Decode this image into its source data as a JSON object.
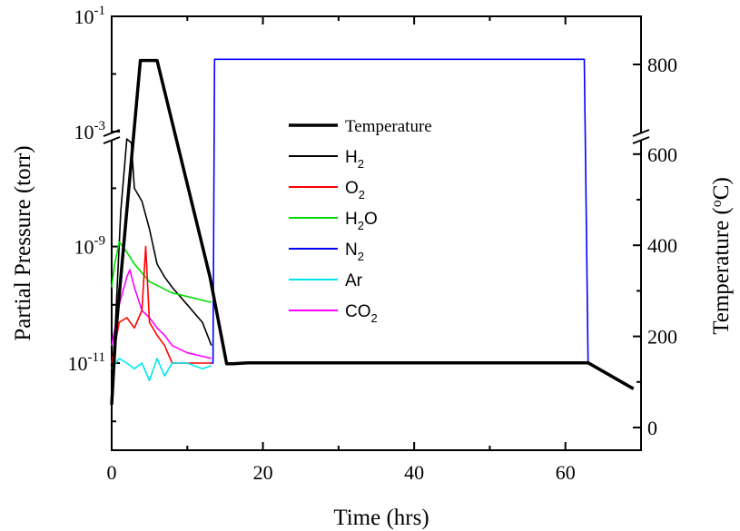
{
  "chart_data": {
    "type": "line",
    "xlabel": "Time (hrs)",
    "ylabel_left": "Partial Pressure (torr)",
    "ylabel_right": "Temperature (",
    "ylabel_right_sup": "o",
    "ylabel_right_end": "C)",
    "xlim": [
      0,
      70
    ],
    "x_ticks": [
      "0",
      "20",
      "40",
      "60"
    ],
    "left_axis": {
      "scale": "log (broken)",
      "tick_labels": [
        {
          "base": "10",
          "exp": "-1"
        },
        {
          "base": "10",
          "exp": "-3"
        },
        {
          "base": "10",
          "exp": "-9"
        },
        {
          "base": "10",
          "exp": "-11"
        }
      ]
    },
    "right_axis": {
      "scale": "linear (broken)",
      "tick_labels": [
        "800",
        "600",
        "400",
        "200",
        "0"
      ]
    },
    "legend": [
      {
        "key": "temp",
        "color": "#000000",
        "plain": "Temperature",
        "sub": "",
        "tail": ""
      },
      {
        "key": "h2",
        "color": "#000000",
        "plain": "H",
        "sub": "2",
        "tail": ""
      },
      {
        "key": "o2",
        "color": "#ff0000",
        "plain": "O",
        "sub": "2",
        "tail": ""
      },
      {
        "key": "h2o",
        "color": "#00dd00",
        "plain": "H",
        "sub": "2",
        "tail": "O"
      },
      {
        "key": "n2",
        "color": "#0000ff",
        "plain": "N",
        "sub": "2",
        "tail": ""
      },
      {
        "key": "ar",
        "color": "#00e5ee",
        "plain": "Ar",
        "sub": "",
        "tail": ""
      },
      {
        "key": "co2",
        "color": "#ff00ff",
        "plain": "CO",
        "sub": "2",
        "tail": ""
      }
    ],
    "series": [
      {
        "name": "Temperature",
        "axis": "right",
        "color": "#000000",
        "x": [
          0,
          0.5,
          3.8,
          6,
          13,
          15.2,
          16,
          18,
          63,
          69
        ],
        "y": [
          50,
          200,
          806,
          806,
          330,
          140,
          140,
          142,
          142,
          85
        ]
      },
      {
        "name": "N2",
        "axis": "left",
        "color": "#0000ff",
        "x": [
          13.0,
          13.4,
          13.6,
          62.0,
          62.5,
          63.0,
          63.3
        ],
        "y": [
          1e-11,
          1e-11,
          0.018,
          0.018,
          0.018,
          1e-11,
          1e-11
        ]
      },
      {
        "name": "H2",
        "axis": "left",
        "color": "#000000",
        "x": [
          0,
          0.5,
          1.2,
          2.0,
          2.6,
          3.0,
          4.0,
          5.0,
          6.0,
          7.0,
          8.0,
          10.0,
          12.0,
          13.2
        ],
        "y": [
          5e-12,
          5e-11,
          4e-09,
          7e-08,
          6e-08,
          1e-08,
          6e-09,
          2e-09,
          5e-10,
          3e-10,
          2e-10,
          1e-10,
          5e-11,
          2e-11
        ]
      },
      {
        "name": "H2O",
        "axis": "left",
        "color": "#00dd00",
        "x": [
          0,
          0.4,
          1.0,
          2.0,
          3.0,
          5.0,
          8.0,
          13.2
        ],
        "y": [
          2e-10,
          5e-10,
          1.2e-09,
          8e-10,
          5e-10,
          2.5e-10,
          1.6e-10,
          1.1e-10
        ]
      },
      {
        "name": "CO2",
        "axis": "left",
        "color": "#ff00ff",
        "x": [
          0,
          1.0,
          2.0,
          2.4,
          3.0,
          4.0,
          5.0,
          6.0,
          7.0,
          8.0,
          10.0,
          13.2
        ],
        "y": [
          2e-11,
          1e-10,
          3e-10,
          4e-10,
          2e-10,
          8e-11,
          6e-11,
          4e-11,
          3e-11,
          2e-11,
          1.5e-11,
          1.2e-11
        ]
      },
      {
        "name": "O2",
        "axis": "left",
        "color": "#ff0000",
        "x": [
          0,
          1.0,
          2.0,
          3.0,
          4.0,
          4.5,
          5.0,
          6.0,
          7.0,
          8.0,
          9.0,
          10.0,
          13.2
        ],
        "y": [
          1e-11,
          5e-11,
          6e-11,
          4e-11,
          8e-11,
          1e-09,
          5e-11,
          3e-11,
          2e-11,
          1e-11,
          1e-11,
          1e-11,
          1e-11
        ]
      },
      {
        "name": "Ar",
        "axis": "left",
        "color": "#00e5ee",
        "x": [
          0,
          1.0,
          2.0,
          3.0,
          4.0,
          5.0,
          6.0,
          7.0,
          8.0,
          10.0,
          12.0,
          13.2
        ],
        "y": [
          8e-12,
          1.2e-11,
          1e-11,
          8e-12,
          1e-11,
          5e-12,
          1.2e-11,
          6e-12,
          1e-11,
          1e-11,
          8e-12,
          9e-12
        ]
      }
    ]
  }
}
